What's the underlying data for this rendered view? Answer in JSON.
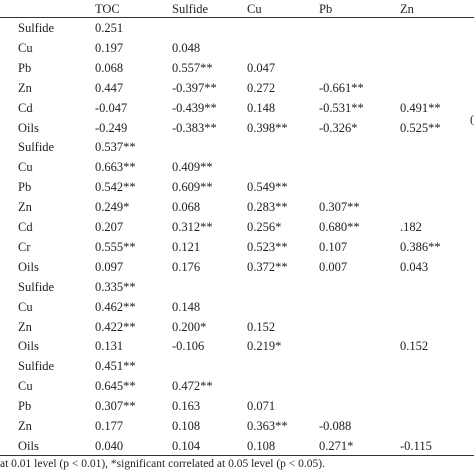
{
  "header": [
    "TOC",
    "Sulfide",
    "Cu",
    "Pb",
    "Zn"
  ],
  "rows": [
    [
      "Sulfide",
      "0.251",
      "",
      "",
      "",
      ""
    ],
    [
      "Cu",
      "0.197",
      "0.048",
      "",
      "",
      ""
    ],
    [
      "Pb",
      "0.068",
      "0.557**",
      "0.047",
      "",
      ""
    ],
    [
      "Zn",
      "0.447",
      "-0.397**",
      "0.272",
      "-0.661**",
      ""
    ],
    [
      "Cd",
      "-0.047",
      "-0.439**",
      "0.148",
      "-0.531**",
      "0.491**"
    ],
    [
      "Oils",
      "-0.249",
      "-0.383**",
      "0.398**",
      "-0.326*",
      "0.525**"
    ],
    [
      "Sulfide",
      "0.537**",
      "",
      "",
      "",
      ""
    ],
    [
      "Cu",
      "0.663**",
      "0.409**",
      "",
      "",
      ""
    ],
    [
      "Pb",
      "0.542**",
      "0.609**",
      "0.549**",
      "",
      ""
    ],
    [
      "Zn",
      "0.249*",
      "0.068",
      "0.283**",
      "0.307**",
      ""
    ],
    [
      "Cd",
      "0.207",
      "0.312**",
      "0.256*",
      "0.680**",
      ".182"
    ],
    [
      "Cr",
      "0.555**",
      "0.121",
      "0.523**",
      "0.107",
      "0.386**"
    ],
    [
      "Oils",
      "0.097",
      "0.176",
      "0.372**",
      "0.007",
      "0.043"
    ],
    [
      "Sulfide",
      "0.335**",
      "",
      "",
      "",
      ""
    ],
    [
      "Cu",
      "0.462**",
      "0.148",
      "",
      "",
      ""
    ],
    [
      "Zn",
      "0.422**",
      "0.200*",
      "0.152",
      "",
      ""
    ],
    [
      "Oils",
      "0.131",
      "-0.106",
      "0.219*",
      "",
      "0.152"
    ],
    [
      "Sulfide",
      "0.451**",
      "",
      "",
      "",
      ""
    ],
    [
      "Cu",
      "0.645**",
      "0.472**",
      "",
      "",
      ""
    ],
    [
      "Pb",
      "0.307**",
      "0.163",
      "0.071",
      "",
      ""
    ],
    [
      "Zn",
      "0.177",
      "0.108",
      "0.363**",
      "-0.088",
      ""
    ],
    [
      "Oils",
      "0.040",
      "0.104",
      "0.108",
      "0.271*",
      "-0.115"
    ]
  ],
  "footnote": "at 0.01 level (p < 0.01), *significant correlated at 0.05 level (p < 0.05).",
  "edge_mark": "("
}
